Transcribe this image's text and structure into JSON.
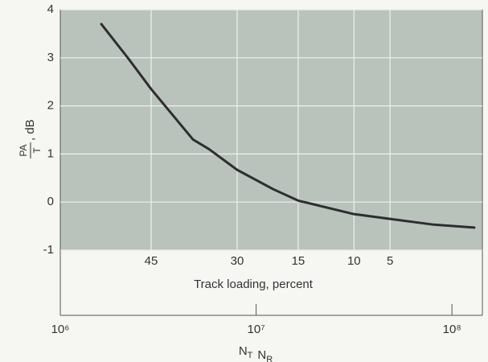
{
  "chart_data": {
    "type": "line",
    "ylabel": {
      "numerator": "PA",
      "denominator": "T",
      "unit": ", dB"
    },
    "xlabel": [
      {
        "text": "N",
        "sub": "T"
      },
      {
        "text": "N",
        "sub": "R"
      }
    ],
    "secondary_xlabel": "Track loading, percent",
    "x": [
      1620000,
      2230000,
      2910000,
      4760000,
      5750000,
      8000000,
      12200000,
      16400000,
      31600000,
      48300000,
      81000000,
      130000000
    ],
    "series": [
      {
        "color": "#2e2e2e",
        "values": [
          3.7,
          2.98,
          2.35,
          1.3,
          1.1,
          0.67,
          0.27,
          0.03,
          -0.25,
          -0.35,
          -0.47,
          -0.53
        ]
      }
    ],
    "xscale": "log",
    "xlim": [
      1000000,
      143000000
    ],
    "xticks": [
      {
        "value": 1000000,
        "label": "10⁶"
      },
      {
        "value": 10000000,
        "label": "10⁷"
      },
      {
        "value": 100000000,
        "label": "10⁸"
      }
    ],
    "loading_ticks": [
      {
        "value": 2910000,
        "label": "45"
      },
      {
        "value": 8000000,
        "label": "30"
      },
      {
        "value": 16400000,
        "label": "15"
      },
      {
        "value": 31600000,
        "label": "10"
      },
      {
        "value": 48300000,
        "label": "5"
      }
    ],
    "ylim": [
      -1,
      4
    ],
    "yticks": [
      -1,
      0,
      1,
      2,
      3,
      4
    ],
    "grid": true,
    "plot_bg": "#b9c3bc"
  }
}
